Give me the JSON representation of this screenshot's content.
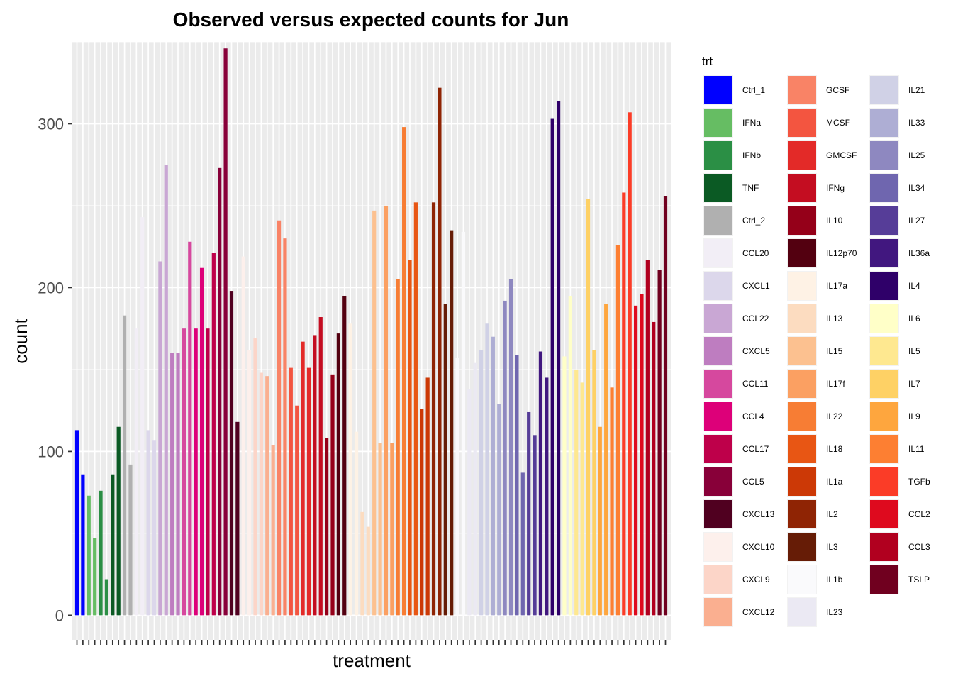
{
  "chart_data": {
    "type": "bar",
    "title": "Observed versus expected counts for Jun",
    "xlabel": "treatment",
    "ylabel": "count",
    "ylim": [
      -15,
      350
    ],
    "y_ticks": [
      0,
      100,
      200,
      300
    ],
    "x_tick_labels": "none",
    "grid": true,
    "legend": {
      "title": "trt",
      "placement": "right",
      "columns": 3,
      "items": [
        {
          "name": "Ctrl_1",
          "color": "#0000FF"
        },
        {
          "name": "IFNa",
          "color": "#66BD63"
        },
        {
          "name": "IFNb",
          "color": "#2B8F45"
        },
        {
          "name": "TNF",
          "color": "#0B5A24"
        },
        {
          "name": "Ctrl_2",
          "color": "#B0B0B0"
        },
        {
          "name": "CCL20",
          "color": "#F2EEF6"
        },
        {
          "name": "CXCL1",
          "color": "#DCD7EB"
        },
        {
          "name": "CCL22",
          "color": "#C9A7D4"
        },
        {
          "name": "CXCL5",
          "color": "#BE7DC0"
        },
        {
          "name": "CCL11",
          "color": "#D6489E"
        },
        {
          "name": "CCL4",
          "color": "#DD0079"
        },
        {
          "name": "CCL17",
          "color": "#BE004A"
        },
        {
          "name": "CCL5",
          "color": "#880039"
        },
        {
          "name": "CXCL13",
          "color": "#500020"
        },
        {
          "name": "CXCL10",
          "color": "#FDF0EC"
        },
        {
          "name": "CXCL9",
          "color": "#FCD5C8"
        },
        {
          "name": "CXCL12",
          "color": "#FAAF90"
        },
        {
          "name": "GCSF",
          "color": "#F98366"
        },
        {
          "name": "MCSF",
          "color": "#F35540"
        },
        {
          "name": "GMCSF",
          "color": "#E32A28"
        },
        {
          "name": "IFNg",
          "color": "#C40D21"
        },
        {
          "name": "IL10",
          "color": "#950019"
        },
        {
          "name": "IL12p70",
          "color": "#530010"
        },
        {
          "name": "IL17a",
          "color": "#FEF2E5"
        },
        {
          "name": "IL13",
          "color": "#FCDCC0"
        },
        {
          "name": "IL15",
          "color": "#FCC190"
        },
        {
          "name": "IL17f",
          "color": "#FBA062"
        },
        {
          "name": "IL22",
          "color": "#F77D34"
        },
        {
          "name": "IL18",
          "color": "#E85614"
        },
        {
          "name": "IL1a",
          "color": "#CC3906"
        },
        {
          "name": "IL2",
          "color": "#8F2404"
        },
        {
          "name": "IL3",
          "color": "#661C06"
        },
        {
          "name": "IL1b",
          "color": "#FAFAFC"
        },
        {
          "name": "IL23",
          "color": "#EBE9F3"
        },
        {
          "name": "IL21",
          "color": "#D0D1E6"
        },
        {
          "name": "IL33",
          "color": "#AEAED4"
        },
        {
          "name": "IL25",
          "color": "#8E88C0"
        },
        {
          "name": "IL34",
          "color": "#6F66AF"
        },
        {
          "name": "IL27",
          "color": "#563D98"
        },
        {
          "name": "IL36a",
          "color": "#41177F"
        },
        {
          "name": "IL4",
          "color": "#2F0069"
        },
        {
          "name": "IL6",
          "color": "#FFFFC8"
        },
        {
          "name": "IL5",
          "color": "#FEE890"
        },
        {
          "name": "IL7",
          "color": "#FED165"
        },
        {
          "name": "IL9",
          "color": "#FEA63E"
        },
        {
          "name": "IL11",
          "color": "#FD7F32"
        },
        {
          "name": "TGFb",
          "color": "#FB3C27"
        },
        {
          "name": "CCL2",
          "color": "#DE0A1E"
        },
        {
          "name": "CCL3",
          "color": "#B1001F"
        },
        {
          "name": "TSLP",
          "color": "#70001F"
        }
      ]
    },
    "groups": [
      {
        "name": "Ctrl_1",
        "values": [
          113,
          86
        ]
      },
      {
        "name": "IFNa",
        "values": [
          73,
          47
        ]
      },
      {
        "name": "IFNb",
        "values": [
          76,
          22
        ]
      },
      {
        "name": "TNF",
        "values": [
          86,
          115
        ]
      },
      {
        "name": "Ctrl_2",
        "values": [
          183,
          92
        ]
      },
      {
        "name": "CCL20",
        "values": [
          175,
          243
        ]
      },
      {
        "name": "CXCL1",
        "values": [
          113,
          107
        ]
      },
      {
        "name": "CCL22",
        "values": [
          216,
          275
        ]
      },
      {
        "name": "CXCL5",
        "values": [
          160,
          160
        ]
      },
      {
        "name": "CCL11",
        "values": [
          175,
          228
        ]
      },
      {
        "name": "CCL4",
        "values": [
          175,
          212
        ]
      },
      {
        "name": "CCL17",
        "values": [
          175,
          221
        ]
      },
      {
        "name": "CCL5",
        "values": [
          273,
          346
        ]
      },
      {
        "name": "CXCL13",
        "values": [
          198,
          118
        ]
      },
      {
        "name": "CXCL10",
        "values": [
          219,
          162
        ]
      },
      {
        "name": "CXCL9",
        "values": [
          169,
          148
        ]
      },
      {
        "name": "CXCL12",
        "values": [
          146,
          104
        ]
      },
      {
        "name": "GCSF",
        "values": [
          241,
          230
        ]
      },
      {
        "name": "MCSF",
        "values": [
          151,
          128
        ]
      },
      {
        "name": "GMCSF",
        "values": [
          167,
          151
        ]
      },
      {
        "name": "IFNg",
        "values": [
          171,
          182
        ]
      },
      {
        "name": "IL10",
        "values": [
          108,
          147
        ]
      },
      {
        "name": "IL12p70",
        "values": [
          172,
          195
        ]
      },
      {
        "name": "IL17a",
        "values": [
          178,
          112
        ]
      },
      {
        "name": "IL13",
        "values": [
          63,
          54
        ]
      },
      {
        "name": "IL15",
        "values": [
          247,
          105
        ]
      },
      {
        "name": "IL17f",
        "values": [
          250,
          105
        ]
      },
      {
        "name": "IL22",
        "values": [
          205,
          298
        ]
      },
      {
        "name": "IL18",
        "values": [
          217,
          252
        ]
      },
      {
        "name": "IL1a",
        "values": [
          126,
          145
        ]
      },
      {
        "name": "IL2",
        "values": [
          252,
          322
        ]
      },
      {
        "name": "IL3",
        "values": [
          190,
          235
        ]
      },
      {
        "name": "IL1b",
        "values": [
          157,
          234
        ]
      },
      {
        "name": "IL23",
        "values": [
          138,
          154
        ]
      },
      {
        "name": "IL21",
        "values": [
          162,
          178
        ]
      },
      {
        "name": "IL33",
        "values": [
          170,
          129
        ]
      },
      {
        "name": "IL25",
        "values": [
          192,
          205
        ]
      },
      {
        "name": "IL34",
        "values": [
          159,
          87
        ]
      },
      {
        "name": "IL27",
        "values": [
          124,
          110
        ]
      },
      {
        "name": "IL36a",
        "values": [
          161,
          145
        ]
      },
      {
        "name": "IL4",
        "values": [
          303,
          314
        ]
      },
      {
        "name": "IL6",
        "values": [
          158,
          195
        ]
      },
      {
        "name": "IL5",
        "values": [
          150,
          142
        ]
      },
      {
        "name": "IL7",
        "values": [
          254,
          162
        ]
      },
      {
        "name": "IL9",
        "values": [
          115,
          190
        ]
      },
      {
        "name": "IL11",
        "values": [
          139,
          226
        ]
      },
      {
        "name": "TGFb",
        "values": [
          258,
          307
        ]
      },
      {
        "name": "CCL2",
        "values": [
          189,
          196
        ]
      },
      {
        "name": "CCL3",
        "values": [
          217,
          179
        ]
      },
      {
        "name": "TSLP",
        "values": [
          211,
          256
        ]
      }
    ]
  }
}
